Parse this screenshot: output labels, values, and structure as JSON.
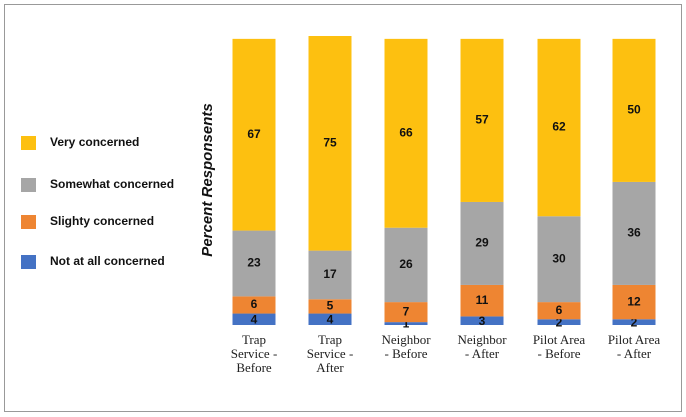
{
  "chart_data": {
    "type": "stacked_bar",
    "y_axis_label": "Percent Responsents",
    "categories": [
      "Trap\nService -\nBefore",
      "Trap\nService -\nAfter",
      "Neighbor\n- Before",
      "Neighbor\n- After",
      "Pilot Area\n- Before",
      "Pilot Area\n- After"
    ],
    "series": [
      {
        "name": "Very concerned",
        "color": "#FDC010",
        "values": [
          67,
          75,
          66,
          57,
          62,
          50
        ]
      },
      {
        "name": "Somewhat concerned",
        "color": "#A6A6A6",
        "values": [
          23,
          17,
          26,
          29,
          30,
          36
        ]
      },
      {
        "name": "Slighty concerned",
        "color": "#EE8532",
        "values": [
          6,
          5,
          7,
          11,
          6,
          12
        ]
      },
      {
        "name": "Not at all concerned",
        "color": "#4472C4",
        "values": [
          4,
          4,
          1,
          3,
          2,
          2
        ]
      }
    ],
    "legend": "left"
  }
}
